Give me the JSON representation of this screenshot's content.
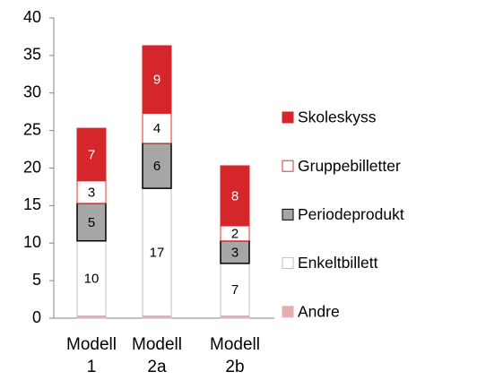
{
  "chart_data": {
    "type": "stacked_bar",
    "categories": [
      "Modell 1",
      "Modell 2a",
      "Modell 2b"
    ],
    "series": [
      {
        "name": "Andre",
        "color": "#e6aeae",
        "border": "#e6aeae",
        "label_color": "#000000",
        "show_labels": false,
        "values": [
          0.3,
          0.3,
          0.3
        ]
      },
      {
        "name": "Enkeltbillett",
        "color": "#ffffff",
        "border": "#bfbfbf",
        "label_color": "#000000",
        "show_labels": true,
        "values": [
          10,
          17,
          7
        ]
      },
      {
        "name": "Periodeprodukt",
        "color": "#a6a6a6",
        "border": "#000000",
        "label_color": "#000000",
        "show_labels": true,
        "values": [
          5,
          6,
          3
        ]
      },
      {
        "name": "Gruppebilletter",
        "color": "#ffffff",
        "border": "#e0302f",
        "label_color": "#000000",
        "show_labels": true,
        "values": [
          3,
          4,
          2
        ]
      },
      {
        "name": "Skoleskyss",
        "color": "#d5272b",
        "border": "#d5272b",
        "label_color": "#ffffff",
        "show_labels": true,
        "values": [
          7,
          9,
          8
        ]
      }
    ],
    "ylim": [
      0,
      40
    ],
    "yticks": [
      0,
      5,
      10,
      15,
      20,
      25,
      30,
      35,
      40
    ],
    "grid": false,
    "legend": "right"
  }
}
